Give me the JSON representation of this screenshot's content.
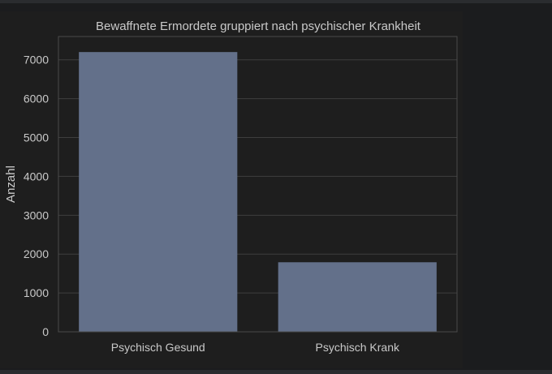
{
  "chart_data": {
    "type": "bar",
    "title": "Bewaffnete Ermordete gruppiert nach psychischer Krankheit",
    "xlabel": "",
    "ylabel": "Anzahl",
    "categories": [
      "Psychisch Gesund",
      "Psychisch Krank"
    ],
    "values": [
      7200,
      1790
    ],
    "ylim": [
      0,
      7600
    ],
    "yticks": [
      0,
      1000,
      2000,
      3000,
      4000,
      5000,
      6000,
      7000
    ],
    "grid": true,
    "bar_color": "#63708a",
    "background": "#1e1e1e",
    "grid_color": "#3e3e3e"
  }
}
